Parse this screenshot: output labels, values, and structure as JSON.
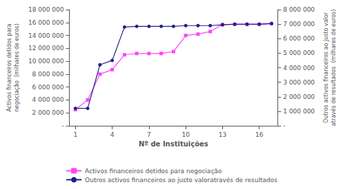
{
  "chart_data": {
    "type": "line",
    "xlabel": "Nº de Instituições",
    "ylabel": "Activos financeiros detidos para\nnegociação  (milhares de euros)",
    "y2label": "Outros activos financeiros ao justo valor\natravés de resultados  (milhares de euros)",
    "x": [
      1,
      2,
      3,
      4,
      5,
      6,
      7,
      8,
      9,
      10,
      11,
      12,
      13,
      14,
      15,
      16,
      17
    ],
    "series": [
      {
        "name": "Activos financeiros detidos para negociação",
        "color": "#FF44FF",
        "marker": "square",
        "values": [
          2500000,
          4000000,
          8000000,
          8700000,
          11000000,
          11200000,
          11200000,
          11200000,
          11500000,
          14000000,
          14200000,
          14600000,
          15700000,
          15700000,
          15700000,
          15700000,
          15800000
        ]
      },
      {
        "name": "Outros activos financeiros ao justo valoratravés de resultados",
        "color": "#1F1F8C",
        "marker": "circle",
        "axis": "y2",
        "values": [
          1200000,
          1200000,
          4200000,
          4500000,
          6800000,
          6850000,
          6850000,
          6850000,
          6850000,
          6900000,
          6900000,
          6900000,
          6950000,
          7000000,
          7000000,
          7000000,
          7050000
        ]
      }
    ],
    "xlim": [
      0.5,
      17.5
    ],
    "xticks": [
      1,
      4,
      7,
      10,
      13,
      16
    ],
    "ylim": [
      0,
      18000000
    ],
    "yticks": [
      {
        "value": 0,
        "label": "-"
      },
      {
        "value": 2000000,
        "label": "2 000 000"
      },
      {
        "value": 4000000,
        "label": "4 000 000"
      },
      {
        "value": 6000000,
        "label": "6 000 000"
      },
      {
        "value": 8000000,
        "label": "8 000 000"
      },
      {
        "value": 10000000,
        "label": "10 000 000"
      },
      {
        "value": 12000000,
        "label": "12 000 000"
      },
      {
        "value": 14000000,
        "label": "14 000 000"
      },
      {
        "value": 16000000,
        "label": "16 000 000"
      },
      {
        "value": 18000000,
        "label": "18 000 000"
      }
    ],
    "y2lim": [
      0,
      8000000
    ],
    "y2ticks": [
      {
        "value": 0,
        "label": "-"
      },
      {
        "value": 1000000,
        "label": "1 000 000"
      },
      {
        "value": 2000000,
        "label": "2 000 000"
      },
      {
        "value": 3000000,
        "label": "3 000 000"
      },
      {
        "value": 4000000,
        "label": "4 000 000"
      },
      {
        "value": 5000000,
        "label": "5 000 000"
      },
      {
        "value": 6000000,
        "label": "6 000 000"
      },
      {
        "value": 7000000,
        "label": "7 000 000"
      },
      {
        "value": 8000000,
        "label": "8 000 000"
      }
    ],
    "grid": false,
    "legend": "lower center"
  }
}
